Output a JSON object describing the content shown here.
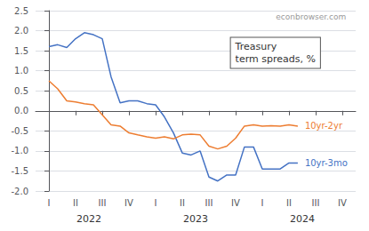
{
  "chart_data": {
    "type": "line",
    "x": [
      0.0,
      0.33,
      0.67,
      1.0,
      1.33,
      1.67,
      2.0,
      2.33,
      2.67,
      3.0,
      3.33,
      3.67,
      4.0,
      4.33,
      4.67,
      5.0,
      5.33,
      5.67,
      6.0,
      6.33,
      6.67,
      7.0,
      7.33,
      7.67,
      8.0,
      8.33,
      8.67,
      9.0,
      9.33
    ],
    "series": [
      {
        "name": "10yr-3mo",
        "color": "#4472c4",
        "values": [
          1.6,
          1.65,
          1.58,
          1.8,
          1.95,
          1.9,
          1.8,
          0.85,
          0.2,
          0.25,
          0.25,
          0.18,
          0.15,
          -0.15,
          -0.55,
          -1.05,
          -1.1,
          -1.0,
          -1.65,
          -1.75,
          -1.6,
          -1.6,
          -0.9,
          -0.9,
          -1.45,
          -1.45,
          -1.45,
          -1.3,
          -1.3
        ]
      },
      {
        "name": "10yr-2yr",
        "color": "#ed7d31",
        "values": [
          0.75,
          0.55,
          0.25,
          0.22,
          0.18,
          0.15,
          -0.1,
          -0.35,
          -0.38,
          -0.55,
          -0.6,
          -0.65,
          -0.68,
          -0.65,
          -0.7,
          -0.6,
          -0.58,
          -0.6,
          -0.88,
          -0.95,
          -0.88,
          -0.68,
          -0.38,
          -0.35,
          -0.38,
          -0.37,
          -0.38,
          -0.35,
          -0.38
        ]
      }
    ],
    "xlim": [
      -0.5,
      11.5
    ],
    "xticks": [
      {
        "value": 0,
        "label": "I"
      },
      {
        "value": 1,
        "label": "II"
      },
      {
        "value": 2,
        "label": "III"
      },
      {
        "value": 3,
        "label": "IV"
      },
      {
        "value": 4,
        "label": "I"
      },
      {
        "value": 5,
        "label": "II"
      },
      {
        "value": 6,
        "label": "III"
      },
      {
        "value": 7,
        "label": "IV"
      },
      {
        "value": 8,
        "label": "I"
      },
      {
        "value": 9,
        "label": "II"
      },
      {
        "value": 10,
        "label": "III"
      },
      {
        "value": 11,
        "label": "IV"
      }
    ],
    "ylim": [
      -2.0,
      2.5
    ],
    "yticks": [
      {
        "value": -2.0,
        "label": "-2.0"
      },
      -1.5,
      {
        "value": -1.0,
        "label": "-1.0"
      },
      -0.5,
      {
        "value": 0.0,
        "label": "0.0"
      },
      0.5,
      {
        "value": 1.0,
        "label": "1.0"
      },
      1.5,
      {
        "value": 2.0,
        "label": "2.0"
      },
      2.5
    ],
    "grid": true,
    "annotations": [
      {
        "text": "econbrowser.com"
      },
      {
        "text": "Treasury\nterm spreads, %"
      },
      {
        "text": "2022",
        "x": 1.5
      },
      {
        "text": "2023",
        "x": 5.5
      },
      {
        "text": "2024",
        "x": 9.5
      }
    ]
  }
}
